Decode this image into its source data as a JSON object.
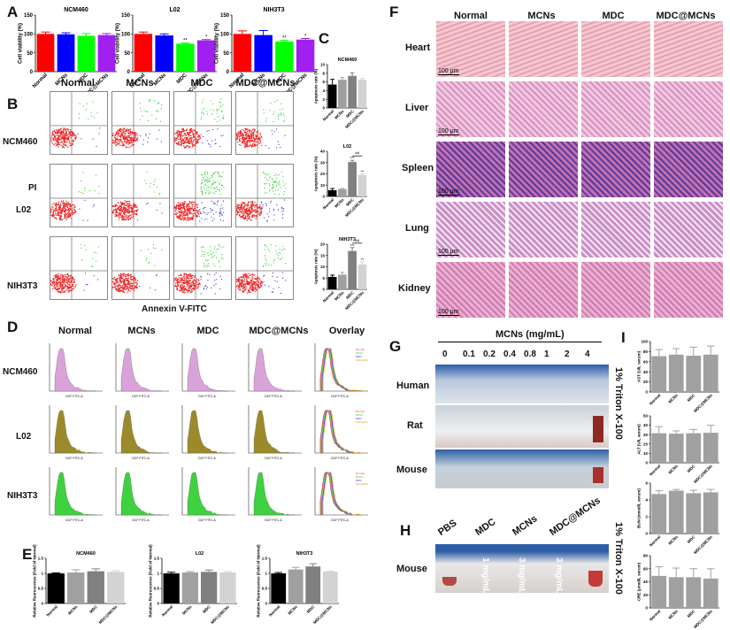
{
  "panels": {
    "A": "A",
    "B": "B",
    "C": "C",
    "D": "D",
    "E": "E",
    "F": "F",
    "G": "G",
    "H": "H",
    "I": "I"
  },
  "groups": [
    "Normal",
    "MCNs",
    "MDC",
    "MDC@MCNs"
  ],
  "cell_lines": [
    "NCM460",
    "L02",
    "NIH3T3"
  ],
  "B": {
    "pi_label": "PI",
    "xlabel": "Annexin V-FITC"
  },
  "D": {
    "columns": [
      "Normal",
      "MCNs",
      "MDC",
      "MDC@MCNs",
      "Overlay"
    ],
    "axis_label": "DCF FITC-A",
    "legend": [
      "Normal",
      "MCNs",
      "MDC",
      "MDC@MCNs"
    ],
    "colors": {
      "NCM460": "#d9a3d9",
      "L02": "#9c8a2a",
      "NIH3T3": "#3fd13f"
    }
  },
  "F": {
    "organs": [
      "Heart",
      "Liver",
      "Spleen",
      "Lung",
      "Kidney"
    ],
    "scale_bar": "100 μm"
  },
  "G": {
    "title": "MCNs (mg/mL)",
    "concentrations": [
      "0",
      "0.1",
      "0.2",
      "0.4",
      "0.8",
      "1",
      "2",
      "4"
    ],
    "rows": [
      "Human",
      "Rat",
      "Mouse"
    ],
    "control": "1% Triton X-100"
  },
  "H": {
    "labels": [
      "PBS",
      "MDC",
      "MCNs",
      "MDC@MCNs"
    ],
    "row": "Mouse",
    "doses": [
      "1 mg/mL",
      "3 mg/mL",
      "3 mg/mL"
    ],
    "control": "1% Triton X-100"
  },
  "bar_colors": {
    "A": [
      "#ff0000",
      "#0000ff",
      "#00ff00",
      "#a020f0"
    ],
    "gray4": [
      "#000000",
      "#a0a0a0",
      "#808080",
      "#d3d3d3"
    ],
    "I": "#a0a0a0"
  },
  "chart_data": [
    {
      "panel": "A",
      "type": "bar",
      "title": "NCM460",
      "ylabel": "Cell viability (%)",
      "ylim": [
        0,
        150
      ],
      "ticks": [
        0,
        50,
        100,
        150
      ],
      "categories": [
        "Normal",
        "MCNs",
        "MDC",
        "MDC@MCNs"
      ],
      "values": [
        100,
        99,
        95,
        97
      ],
      "errors": [
        5,
        4,
        6,
        4
      ],
      "marks": [
        "",
        "",
        "",
        ""
      ]
    },
    {
      "panel": "A",
      "type": "bar",
      "title": "L02",
      "ylabel": "Cell viability (%)",
      "ylim": [
        0,
        150
      ],
      "ticks": [
        0,
        50,
        100,
        150
      ],
      "categories": [
        "Normal",
        "MCNs",
        "MDC",
        "MDC@MCNs"
      ],
      "values": [
        100,
        96,
        74,
        83
      ],
      "errors": [
        5,
        4,
        2,
        2
      ],
      "marks": [
        "",
        "",
        "**",
        "*"
      ]
    },
    {
      "panel": "A",
      "type": "bar",
      "title": "NIH3T3",
      "ylabel": "Cell viability (%)",
      "ylim": [
        0,
        150
      ],
      "ticks": [
        0,
        50,
        100,
        150
      ],
      "categories": [
        "Normal",
        "MCNs",
        "MDC",
        "MDC@MCNs"
      ],
      "values": [
        100,
        97,
        80,
        85
      ],
      "errors": [
        8,
        12,
        3,
        3
      ],
      "marks": [
        "",
        "",
        "**",
        "*"
      ]
    },
    {
      "panel": "C",
      "type": "bar",
      "title": "NCM460",
      "ylabel": "Apoptosis rate (%)",
      "ylim": [
        0,
        10
      ],
      "ticks": [
        0,
        2,
        4,
        6,
        8,
        10
      ],
      "categories": [
        "Normal",
        "MCNs",
        "MDC",
        "MDC@MCNs"
      ],
      "values": [
        5.4,
        6.5,
        7.4,
        6.5
      ],
      "errors": [
        1.2,
        0.5,
        0.7,
        0.3
      ],
      "marks": [
        "",
        "",
        "",
        ""
      ]
    },
    {
      "panel": "C",
      "type": "bar",
      "title": "L02",
      "ylabel": "Apoptosis rate (%)",
      "ylim": [
        0,
        40
      ],
      "ticks": [
        0,
        10,
        20,
        30,
        40
      ],
      "categories": [
        "Normal",
        "MCNs",
        "MDC",
        "MDC@MCNs"
      ],
      "values": [
        5.5,
        6.5,
        30.5,
        19
      ],
      "errors": [
        1.5,
        0.5,
        1.5,
        1
      ],
      "marks": [
        "",
        "",
        "***",
        "**"
      ],
      "bracket": "##"
    },
    {
      "panel": "C",
      "type": "bar",
      "title": "NIH3T3",
      "ylabel": "Apoptosis rate (%)",
      "ylim": [
        0,
        20
      ],
      "ticks": [
        0,
        5,
        10,
        15,
        20
      ],
      "categories": [
        "Normal",
        "MCNs",
        "MDC",
        "MDC@MCNs"
      ],
      "values": [
        5.5,
        6.5,
        17,
        11
      ],
      "errors": [
        0.8,
        1,
        1.5,
        1.2
      ],
      "marks": [
        "",
        "",
        "***",
        "**"
      ],
      "bracket": "##"
    },
    {
      "panel": "E",
      "type": "bar",
      "title": "NCM460",
      "ylabel": "Relative fluorescence (Fold of Normal)",
      "ylim": [
        0,
        1.5
      ],
      "ticks": [
        0.0,
        0.5,
        1.0,
        1.5
      ],
      "categories": [
        "Normal",
        "MCNs",
        "MDC",
        "MDC@MCNs"
      ],
      "values": [
        1.0,
        1.03,
        1.07,
        1.05
      ],
      "errors": [
        0.02,
        0.09,
        0.08,
        0.04
      ],
      "marks": [
        "",
        "",
        "",
        ""
      ]
    },
    {
      "panel": "E",
      "type": "bar",
      "title": "L02",
      "ylabel": "Relative fluorescence (Fold of Normal)",
      "ylim": [
        0,
        1.5
      ],
      "ticks": [
        0.0,
        0.5,
        1.0,
        1.5
      ],
      "categories": [
        "Normal",
        "MCNs",
        "MDC",
        "MDC@MCNs"
      ],
      "values": [
        1.0,
        1.03,
        1.05,
        1.03
      ],
      "errors": [
        0.04,
        0.03,
        0.06,
        0.03
      ],
      "marks": [
        "",
        "",
        "",
        ""
      ]
    },
    {
      "panel": "E",
      "type": "bar",
      "title": "NIH3T3",
      "ylabel": "Relative fluorescence (Fold of Normal)",
      "ylim": [
        0,
        1.5
      ],
      "ticks": [
        0.0,
        0.5,
        1.0,
        1.5
      ],
      "categories": [
        "Normal",
        "MCNs",
        "MDC",
        "MDC@MCNs"
      ],
      "values": [
        1.0,
        1.13,
        1.23,
        1.06
      ],
      "errors": [
        0.03,
        0.07,
        0.09,
        0.02
      ],
      "marks": [
        "",
        "",
        "",
        ""
      ]
    },
    {
      "panel": "I",
      "type": "bar",
      "title": "",
      "ylabel": "AST (U/L serum)",
      "ylim": [
        0,
        100
      ],
      "ticks": [
        0,
        20,
        40,
        60,
        80,
        100
      ],
      "categories": [
        "Normal",
        "MCNs",
        "MDC",
        "MDC@MCNs"
      ],
      "values": [
        71,
        74,
        72,
        74
      ],
      "errors": [
        13,
        12,
        17,
        17
      ],
      "marks": [
        "",
        "",
        "",
        ""
      ]
    },
    {
      "panel": "I",
      "type": "bar",
      "title": "",
      "ylabel": "ALT (U/L serum)",
      "ylim": [
        0,
        50
      ],
      "ticks": [
        0,
        10,
        20,
        30,
        40,
        50
      ],
      "categories": [
        "Normal",
        "MCNs",
        "MDC",
        "MDC@MCNs"
      ],
      "values": [
        31.5,
        31,
        31.5,
        32
      ],
      "errors": [
        7,
        3,
        4,
        8
      ],
      "marks": [
        "",
        "",
        "",
        ""
      ]
    },
    {
      "panel": "I",
      "type": "bar",
      "title": "",
      "ylabel": "BUN (mmol/L serum)",
      "ylim": [
        0,
        6
      ],
      "ticks": [
        0,
        2,
        4,
        6
      ],
      "categories": [
        "Normal",
        "MCNs",
        "MDC",
        "MDC@MCNs"
      ],
      "values": [
        4.7,
        5.1,
        4.8,
        4.9
      ],
      "errors": [
        0.4,
        0.15,
        0.35,
        0.35
      ],
      "marks": [
        "",
        "",
        "",
        ""
      ]
    },
    {
      "panel": "I",
      "type": "bar",
      "title": "",
      "ylabel": "CRE (μmol/L serum)",
      "ylim": [
        0,
        80
      ],
      "ticks": [
        0,
        20,
        40,
        60,
        80
      ],
      "categories": [
        "Normal",
        "MCNs",
        "MDC",
        "MDC@MCNs"
      ],
      "values": [
        49,
        47,
        47,
        45
      ],
      "errors": [
        14,
        14,
        13,
        15
      ],
      "marks": [
        "",
        "",
        "",
        ""
      ]
    }
  ]
}
